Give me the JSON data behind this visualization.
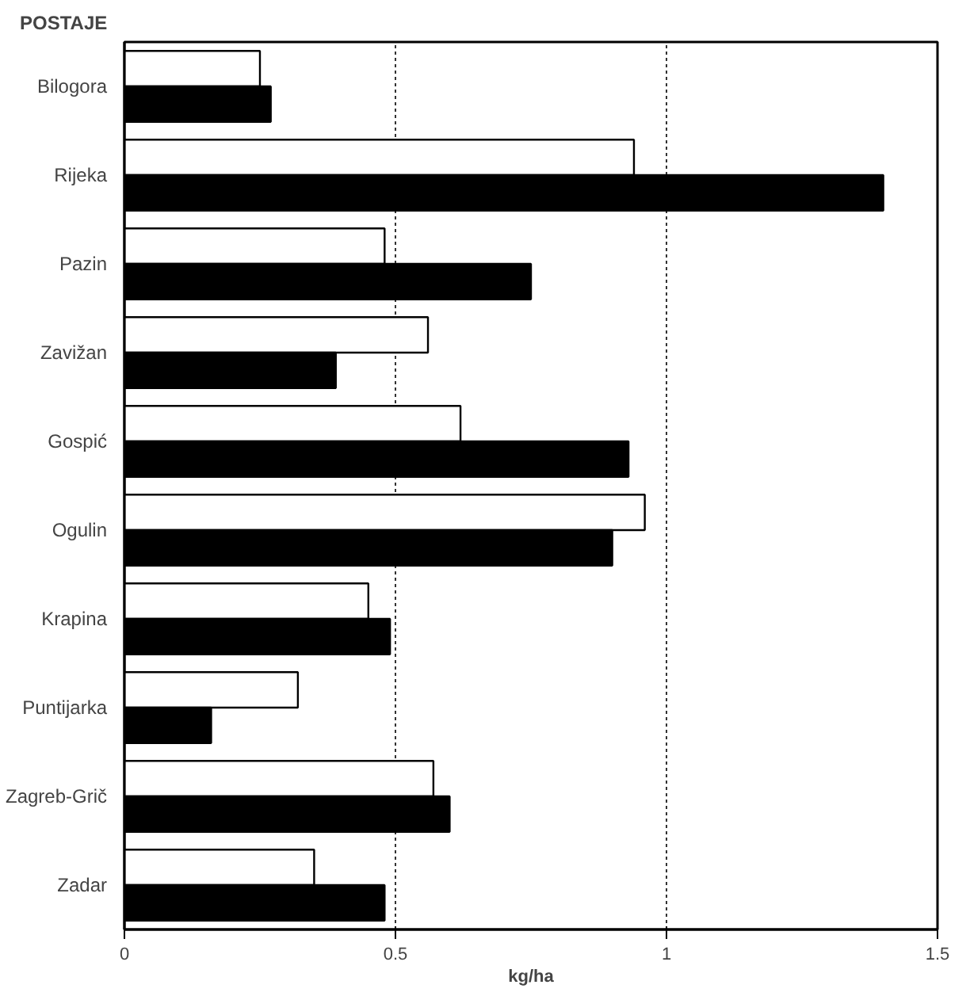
{
  "chart_data": {
    "type": "bar",
    "orientation": "horizontal",
    "ylabel": "POSTAJE",
    "xlabel": "kg/ha",
    "categories": [
      "Bilogora",
      "Rijeka",
      "Pazin",
      "Zavižan",
      "Gospić",
      "Ogulin",
      "Krapina",
      "Puntijarka",
      "Zagreb-Grič",
      "Zadar"
    ],
    "series": [
      {
        "color": "#ffffff",
        "values": [
          0.25,
          0.94,
          0.48,
          0.56,
          0.62,
          0.96,
          0.45,
          0.32,
          0.57,
          0.35
        ]
      },
      {
        "color": "#000000",
        "values": [
          0.27,
          1.4,
          0.75,
          0.39,
          0.93,
          0.9,
          0.49,
          0.16,
          0.6,
          0.48
        ]
      }
    ],
    "xlim": [
      0,
      1.5
    ],
    "xticks": [
      0,
      0.5,
      1,
      1.5
    ],
    "grid": "x"
  }
}
